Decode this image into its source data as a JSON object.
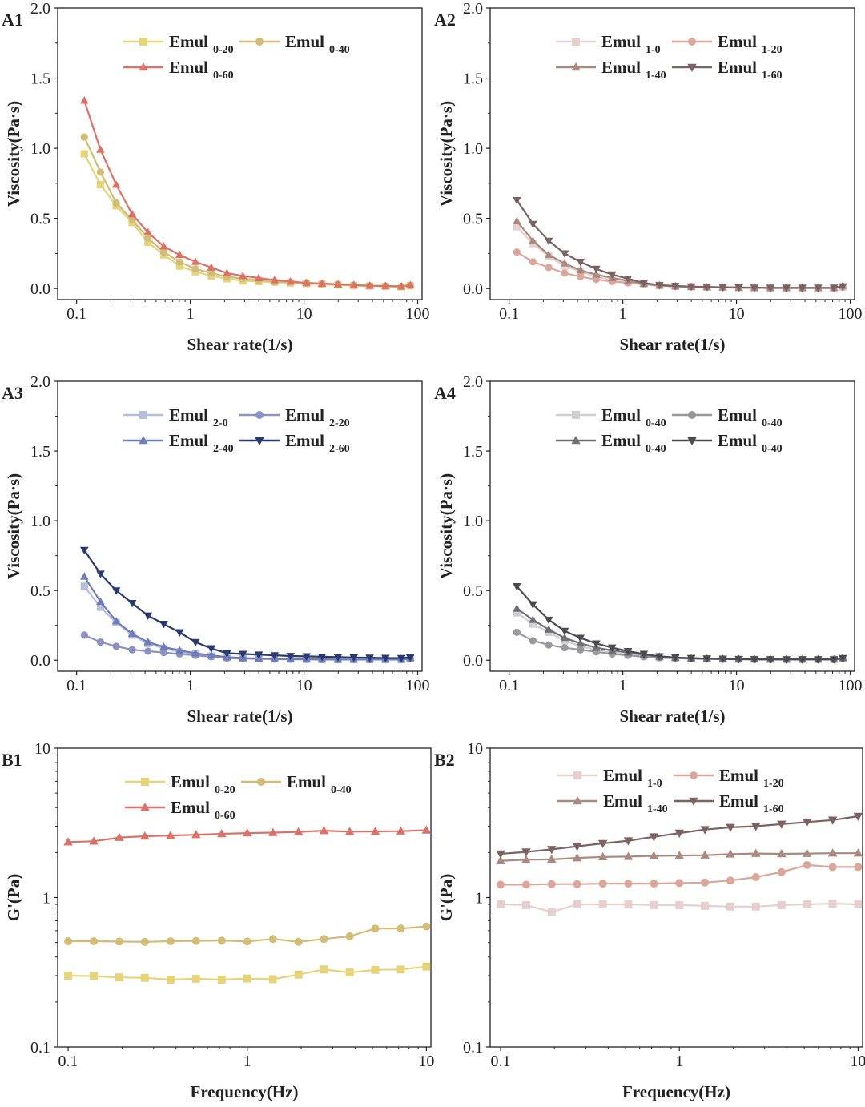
{
  "chart_data": [
    {
      "id": "A1",
      "panel_label": "A1",
      "type": "line",
      "xscale": "log",
      "yscale": "linear",
      "xlabel": "Shear rate(1/s)",
      "ylabel": "Viscosity(Pa·s)",
      "xlim": [
        0.1,
        100
      ],
      "ylim": [
        0,
        2.0
      ],
      "xticks": [
        "0.1",
        "1",
        "10",
        "100"
      ],
      "yticks": [
        "0.0",
        "0.5",
        "1.0",
        "1.5",
        "2.0"
      ],
      "legend_position": "top-center",
      "x": [
        0.117,
        0.162,
        0.223,
        0.308,
        0.424,
        0.584,
        0.805,
        1.11,
        1.53,
        2.1,
        2.9,
        4.0,
        5.5,
        7.6,
        10.5,
        14.4,
        19.9,
        27.4,
        37.8,
        52.1,
        71.8,
        86.0
      ],
      "series": [
        {
          "name_main": "Emul",
          "name_sub": "0-20",
          "color": "#e6d47a",
          "marker": "square",
          "values": [
            0.96,
            0.74,
            0.59,
            0.47,
            0.33,
            0.24,
            0.16,
            0.12,
            0.09,
            0.07,
            0.055,
            0.05,
            0.045,
            0.04,
            0.035,
            0.03,
            0.025,
            0.02,
            0.018,
            0.015,
            0.012,
            0.02
          ]
        },
        {
          "name_main": "Emul",
          "name_sub": "0-40",
          "color": "#d1bc78",
          "marker": "circle",
          "values": [
            1.08,
            0.83,
            0.61,
            0.49,
            0.36,
            0.26,
            0.19,
            0.14,
            0.11,
            0.085,
            0.07,
            0.06,
            0.05,
            0.045,
            0.04,
            0.035,
            0.03,
            0.025,
            0.02,
            0.018,
            0.015,
            0.02
          ]
        },
        {
          "name_main": "Emul",
          "name_sub": "0-60",
          "color": "#d9736a",
          "marker": "triangle-up",
          "values": [
            1.34,
            0.99,
            0.74,
            0.53,
            0.4,
            0.3,
            0.24,
            0.19,
            0.15,
            0.11,
            0.09,
            0.075,
            0.06,
            0.05,
            0.04,
            0.035,
            0.03,
            0.025,
            0.02,
            0.018,
            0.015,
            0.025
          ]
        }
      ]
    },
    {
      "id": "A2",
      "panel_label": "A2",
      "type": "line",
      "xscale": "log",
      "yscale": "linear",
      "xlabel": "Shear rate(1/s)",
      "ylabel": "Viscosity(Pa·s)",
      "xlim": [
        0.1,
        100
      ],
      "ylim": [
        0,
        2.0
      ],
      "xticks": [
        "0.1",
        "1",
        "10",
        "100"
      ],
      "yticks": [
        "0.0",
        "0.5",
        "1.0",
        "1.5",
        "2.0"
      ],
      "legend_position": "top-center",
      "x": [
        0.117,
        0.162,
        0.223,
        0.308,
        0.424,
        0.584,
        0.805,
        1.11,
        1.53,
        2.1,
        2.9,
        4.0,
        5.5,
        7.6,
        10.5,
        14.4,
        19.9,
        27.4,
        37.8,
        52.1,
        71.8,
        86.0
      ],
      "series": [
        {
          "name_main": "Emul",
          "name_sub": "1-0",
          "color": "#e6cfcf",
          "marker": "square",
          "values": [
            0.44,
            0.32,
            0.23,
            0.16,
            0.12,
            0.085,
            0.06,
            0.045,
            0.03,
            0.02,
            0.015,
            0.012,
            0.01,
            0.008,
            0.006,
            0.005,
            0.004,
            0.004,
            0.004,
            0.004,
            0.004,
            0.01
          ]
        },
        {
          "name_main": "Emul",
          "name_sub": "1-20",
          "color": "#d9a79c",
          "marker": "circle",
          "values": [
            0.26,
            0.19,
            0.15,
            0.11,
            0.085,
            0.065,
            0.05,
            0.04,
            0.03,
            0.02,
            0.015,
            0.012,
            0.01,
            0.008,
            0.006,
            0.005,
            0.004,
            0.004,
            0.004,
            0.004,
            0.004,
            0.01
          ]
        },
        {
          "name_main": "Emul",
          "name_sub": "1-40",
          "color": "#a88a80",
          "marker": "triangle-up",
          "values": [
            0.48,
            0.34,
            0.24,
            0.18,
            0.13,
            0.1,
            0.075,
            0.055,
            0.035,
            0.022,
            0.016,
            0.012,
            0.01,
            0.008,
            0.006,
            0.005,
            0.004,
            0.004,
            0.004,
            0.004,
            0.004,
            0.02
          ]
        },
        {
          "name_main": "Emul",
          "name_sub": "1-60",
          "color": "#7a6363",
          "marker": "triangle-down",
          "values": [
            0.63,
            0.46,
            0.34,
            0.25,
            0.19,
            0.14,
            0.1,
            0.07,
            0.04,
            0.025,
            0.018,
            0.014,
            0.011,
            0.009,
            0.007,
            0.006,
            0.005,
            0.005,
            0.005,
            0.005,
            0.005,
            0.015
          ]
        }
      ]
    },
    {
      "id": "A3",
      "panel_label": "A3",
      "type": "line",
      "xscale": "log",
      "yscale": "linear",
      "xlabel": "Shear rate(1/s)",
      "ylabel": "Viscosity(Pa·s)",
      "xlim": [
        0.1,
        100
      ],
      "ylim": [
        0,
        2.0
      ],
      "xticks": [
        "0.1",
        "1",
        "10",
        "100"
      ],
      "yticks": [
        "0.0",
        "0.5",
        "1.0",
        "1.5",
        "2.0"
      ],
      "legend_position": "top-center",
      "x": [
        0.117,
        0.162,
        0.223,
        0.308,
        0.424,
        0.584,
        0.805,
        1.11,
        1.53,
        2.1,
        2.9,
        4.0,
        5.5,
        7.6,
        10.5,
        14.4,
        19.9,
        27.4,
        37.8,
        52.1,
        71.8,
        86.0
      ],
      "series": [
        {
          "name_main": "Emul",
          "name_sub": "2-0",
          "color": "#b8bfd9",
          "marker": "square",
          "values": [
            0.53,
            0.38,
            0.27,
            0.18,
            0.12,
            0.085,
            0.06,
            0.045,
            0.03,
            0.02,
            0.015,
            0.012,
            0.01,
            0.008,
            0.007,
            0.006,
            0.005,
            0.005,
            0.005,
            0.005,
            0.005,
            0.01
          ]
        },
        {
          "name_main": "Emul",
          "name_sub": "2-20",
          "color": "#8d92c2",
          "marker": "circle",
          "values": [
            0.18,
            0.13,
            0.1,
            0.075,
            0.065,
            0.055,
            0.045,
            0.035,
            0.025,
            0.015,
            0.012,
            0.01,
            0.008,
            0.007,
            0.006,
            0.005,
            0.005,
            0.005,
            0.005,
            0.005,
            0.005,
            0.01
          ]
        },
        {
          "name_main": "Emul",
          "name_sub": "2-40",
          "color": "#6e7db8",
          "marker": "triangle-up",
          "values": [
            0.6,
            0.42,
            0.28,
            0.19,
            0.13,
            0.095,
            0.07,
            0.05,
            0.035,
            0.022,
            0.016,
            0.012,
            0.01,
            0.008,
            0.007,
            0.006,
            0.005,
            0.005,
            0.005,
            0.005,
            0.005,
            0.015
          ]
        },
        {
          "name_main": "Emul",
          "name_sub": "2-60",
          "color": "#2b3a6e",
          "marker": "triangle-down",
          "values": [
            0.79,
            0.62,
            0.5,
            0.41,
            0.32,
            0.26,
            0.2,
            0.13,
            0.085,
            0.05,
            0.045,
            0.04,
            0.035,
            0.03,
            0.028,
            0.025,
            0.022,
            0.02,
            0.018,
            0.016,
            0.015,
            0.02
          ]
        }
      ]
    },
    {
      "id": "A4",
      "panel_label": "A4",
      "type": "line",
      "xscale": "log",
      "yscale": "linear",
      "xlabel": "Shear rate(1/s)",
      "ylabel": "Viscosity(Pa·s)",
      "xlim": [
        0.1,
        100
      ],
      "ylim": [
        0,
        2.0
      ],
      "xticks": [
        "0.1",
        "1",
        "10",
        "100"
      ],
      "yticks": [
        "0.0",
        "0.5",
        "1.0",
        "1.5",
        "2.0"
      ],
      "legend_position": "top-center",
      "x": [
        0.117,
        0.162,
        0.223,
        0.308,
        0.424,
        0.584,
        0.805,
        1.11,
        1.53,
        2.1,
        2.9,
        4.0,
        5.5,
        7.6,
        10.5,
        14.4,
        19.9,
        27.4,
        37.8,
        52.1,
        71.8,
        86.0
      ],
      "series": [
        {
          "name_main": "Emul",
          "name_sub": "0-40",
          "color": "#cfcfd2",
          "marker": "square",
          "values": [
            0.34,
            0.26,
            0.2,
            0.14,
            0.1,
            0.075,
            0.055,
            0.04,
            0.03,
            0.02,
            0.015,
            0.012,
            0.01,
            0.008,
            0.007,
            0.006,
            0.005,
            0.005,
            0.005,
            0.005,
            0.005,
            0.01
          ]
        },
        {
          "name_main": "Emul",
          "name_sub": "0-40",
          "color": "#9a9a9e",
          "marker": "circle",
          "values": [
            0.2,
            0.14,
            0.11,
            0.09,
            0.075,
            0.06,
            0.045,
            0.035,
            0.025,
            0.018,
            0.014,
            0.011,
            0.009,
            0.008,
            0.007,
            0.006,
            0.005,
            0.005,
            0.005,
            0.005,
            0.005,
            0.01
          ]
        },
        {
          "name_main": "Emul",
          "name_sub": "0-40",
          "color": "#707075",
          "marker": "triangle-up",
          "values": [
            0.37,
            0.29,
            0.22,
            0.16,
            0.12,
            0.09,
            0.07,
            0.055,
            0.04,
            0.025,
            0.018,
            0.014,
            0.011,
            0.009,
            0.008,
            0.007,
            0.006,
            0.006,
            0.006,
            0.006,
            0.006,
            0.015
          ]
        },
        {
          "name_main": "Emul",
          "name_sub": "0-40",
          "color": "#4a4a50",
          "marker": "triangle-down",
          "values": [
            0.53,
            0.4,
            0.29,
            0.21,
            0.16,
            0.12,
            0.09,
            0.065,
            0.045,
            0.028,
            0.02,
            0.015,
            0.012,
            0.01,
            0.008,
            0.007,
            0.006,
            0.006,
            0.006,
            0.006,
            0.006,
            0.015
          ]
        }
      ]
    },
    {
      "id": "B1",
      "panel_label": "B1",
      "type": "line",
      "xscale": "log",
      "yscale": "log",
      "xlabel": "Frequency(Hz)",
      "ylabel": "G'(Pa)",
      "xlim": [
        0.1,
        10
      ],
      "ylim": [
        0.1,
        10
      ],
      "xticks": [
        "0.1",
        "1",
        "10"
      ],
      "yticks": [
        "0.1",
        "1",
        "10"
      ],
      "legend_position": "top-center",
      "x": [
        0.1,
        0.139,
        0.193,
        0.268,
        0.373,
        0.518,
        0.72,
        1.0,
        1.39,
        1.93,
        2.68,
        3.73,
        5.18,
        7.2,
        10.0
      ],
      "series": [
        {
          "name_main": "Emul",
          "name_sub": "0-20",
          "color": "#e6d47a",
          "marker": "square",
          "values": [
            0.3,
            0.298,
            0.292,
            0.29,
            0.282,
            0.286,
            0.282,
            0.287,
            0.284,
            0.305,
            0.33,
            0.315,
            0.328,
            0.33,
            0.345
          ]
        },
        {
          "name_main": "Emul",
          "name_sub": "0-40",
          "color": "#d1bc78",
          "marker": "circle",
          "values": [
            0.51,
            0.51,
            0.508,
            0.505,
            0.51,
            0.512,
            0.515,
            0.508,
            0.528,
            0.505,
            0.528,
            0.55,
            0.62,
            0.62,
            0.64
          ]
        },
        {
          "name_main": "Emul",
          "name_sub": "0-60",
          "color": "#d9736a",
          "marker": "triangle-up",
          "values": [
            2.35,
            2.38,
            2.52,
            2.57,
            2.6,
            2.63,
            2.67,
            2.7,
            2.72,
            2.75,
            2.8,
            2.76,
            2.77,
            2.78,
            2.82
          ]
        }
      ]
    },
    {
      "id": "B2",
      "panel_label": "B2",
      "type": "line",
      "xscale": "log",
      "yscale": "log",
      "xlabel": "Frequency(Hz)",
      "ylabel": "G'(Pa)",
      "xlim": [
        0.1,
        10
      ],
      "ylim": [
        0.1,
        10
      ],
      "xticks": [
        "0.1",
        "1",
        "10"
      ],
      "yticks": [
        "0.1",
        "1",
        "10"
      ],
      "legend_position": "top-center",
      "x": [
        0.1,
        0.139,
        0.193,
        0.268,
        0.373,
        0.518,
        0.72,
        1.0,
        1.39,
        1.93,
        2.68,
        3.73,
        5.18,
        7.2,
        10.0
      ],
      "series": [
        {
          "name_main": "Emul",
          "name_sub": "1-0",
          "color": "#e6cfcf",
          "marker": "square",
          "values": [
            0.9,
            0.89,
            0.8,
            0.9,
            0.9,
            0.9,
            0.89,
            0.89,
            0.88,
            0.87,
            0.87,
            0.89,
            0.9,
            0.91,
            0.9
          ]
        },
        {
          "name_main": "Emul",
          "name_sub": "1-20",
          "color": "#d9a79c",
          "marker": "circle",
          "values": [
            1.22,
            1.22,
            1.23,
            1.23,
            1.24,
            1.24,
            1.24,
            1.25,
            1.26,
            1.3,
            1.37,
            1.48,
            1.65,
            1.6,
            1.6
          ]
        },
        {
          "name_main": "Emul",
          "name_sub": "1-40",
          "color": "#a88a80",
          "marker": "triangle-up",
          "values": [
            1.76,
            1.79,
            1.8,
            1.84,
            1.87,
            1.88,
            1.9,
            1.91,
            1.92,
            1.95,
            1.97,
            1.96,
            1.97,
            1.98,
            1.98
          ]
        },
        {
          "name_main": "Emul",
          "name_sub": "1-60",
          "color": "#7a6363",
          "marker": "triangle-down",
          "values": [
            1.96,
            2.02,
            2.1,
            2.2,
            2.3,
            2.4,
            2.55,
            2.7,
            2.85,
            2.95,
            3.0,
            3.1,
            3.2,
            3.3,
            3.5
          ]
        }
      ]
    }
  ]
}
